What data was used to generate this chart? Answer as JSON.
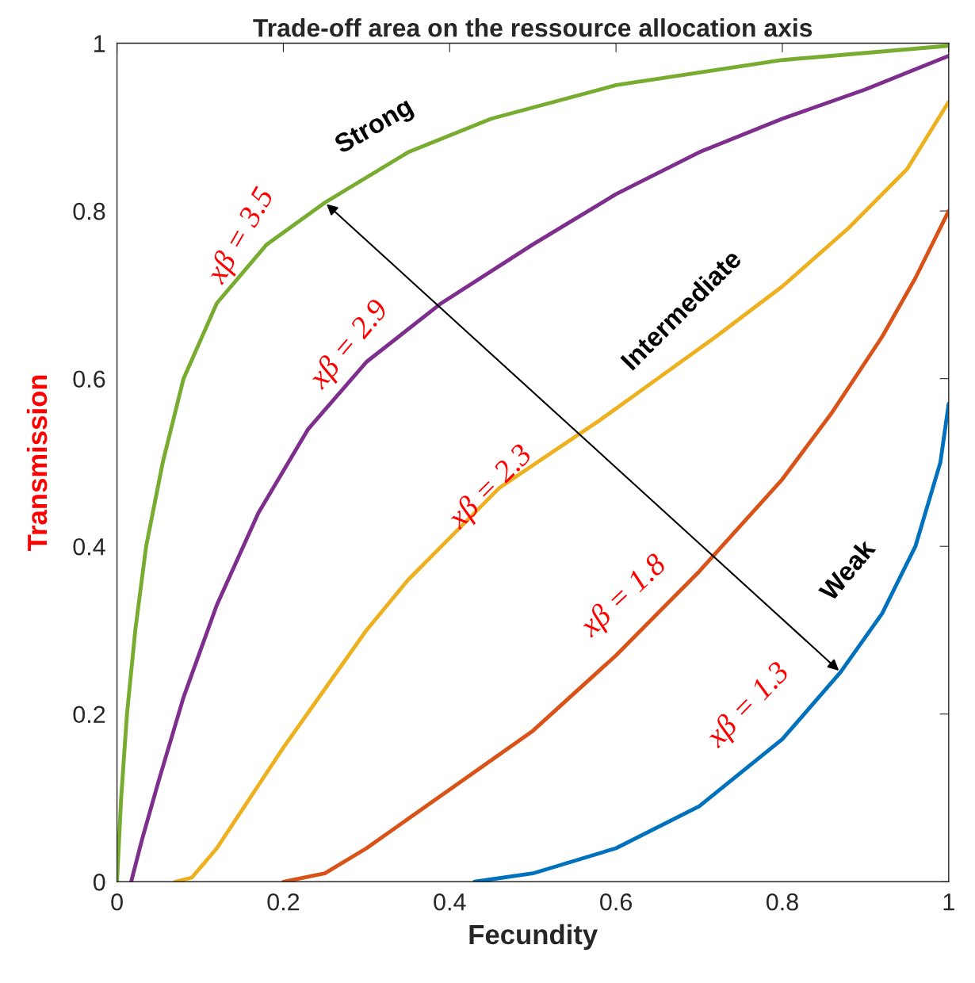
{
  "chart_data": {
    "type": "line",
    "title": "Trade-off area on the ressource allocation axis",
    "xlabel": "Fecundity",
    "ylabel": "Transmission",
    "xlim": [
      0,
      1
    ],
    "ylim": [
      0,
      1
    ],
    "xticks": [
      0,
      0.2,
      0.4,
      0.6,
      0.8,
      1
    ],
    "yticks": [
      0,
      0.2,
      0.4,
      0.6,
      0.8,
      1
    ],
    "grid": false,
    "legend": false,
    "marker": "none",
    "line_style": "solid",
    "series": [
      {
        "color": "#77ac30",
        "x": [
          0,
          0.005,
          0.012,
          0.022,
          0.035,
          0.055,
          0.08,
          0.12,
          0.18,
          0.25,
          0.35,
          0.45,
          0.6,
          0.8,
          1
        ],
        "values": [
          0,
          0.1,
          0.2,
          0.3,
          0.4,
          0.5,
          0.6,
          0.69,
          0.76,
          0.81,
          0.87,
          0.91,
          0.95,
          0.98,
          0.997
        ]
      },
      {
        "color": "#7e2f8e",
        "x": [
          0.017,
          0.03,
          0.05,
          0.08,
          0.12,
          0.17,
          0.23,
          0.3,
          0.39,
          0.5,
          0.6,
          0.7,
          0.8,
          0.9,
          1
        ],
        "values": [
          0,
          0.05,
          0.12,
          0.22,
          0.33,
          0.44,
          0.54,
          0.62,
          0.69,
          0.76,
          0.82,
          0.87,
          0.91,
          0.945,
          0.985
        ]
      },
      {
        "color": "#edb120",
        "x": [
          0.07,
          0.09,
          0.12,
          0.16,
          0.2,
          0.25,
          0.3,
          0.35,
          0.4,
          0.46,
          0.52,
          0.58,
          0.65,
          0.72,
          0.8,
          0.88,
          0.95,
          1
        ],
        "values": [
          0,
          0.005,
          0.04,
          0.1,
          0.16,
          0.23,
          0.3,
          0.36,
          0.41,
          0.47,
          0.51,
          0.55,
          0.6,
          0.65,
          0.71,
          0.78,
          0.85,
          0.93
        ]
      },
      {
        "color": "#d95319",
        "x": [
          0.2,
          0.25,
          0.3,
          0.4,
          0.5,
          0.6,
          0.7,
          0.8,
          0.86,
          0.92,
          0.96,
          1
        ],
        "values": [
          0,
          0.01,
          0.04,
          0.11,
          0.18,
          0.27,
          0.37,
          0.48,
          0.56,
          0.65,
          0.72,
          0.8
        ]
      },
      {
        "color": "#0072bd",
        "x": [
          0.43,
          0.5,
          0.6,
          0.7,
          0.8,
          0.87,
          0.92,
          0.96,
          0.99,
          1
        ],
        "values": [
          0,
          0.01,
          0.04,
          0.09,
          0.17,
          0.25,
          0.32,
          0.4,
          0.5,
          0.57
        ]
      }
    ],
    "annotations": [
      "xβ = 3.5",
      "xβ = 2.9",
      "xβ = 2.3",
      "xβ = 1.8",
      "xβ = 1.3",
      "Strong",
      "Intermediate",
      "Weak"
    ]
  }
}
